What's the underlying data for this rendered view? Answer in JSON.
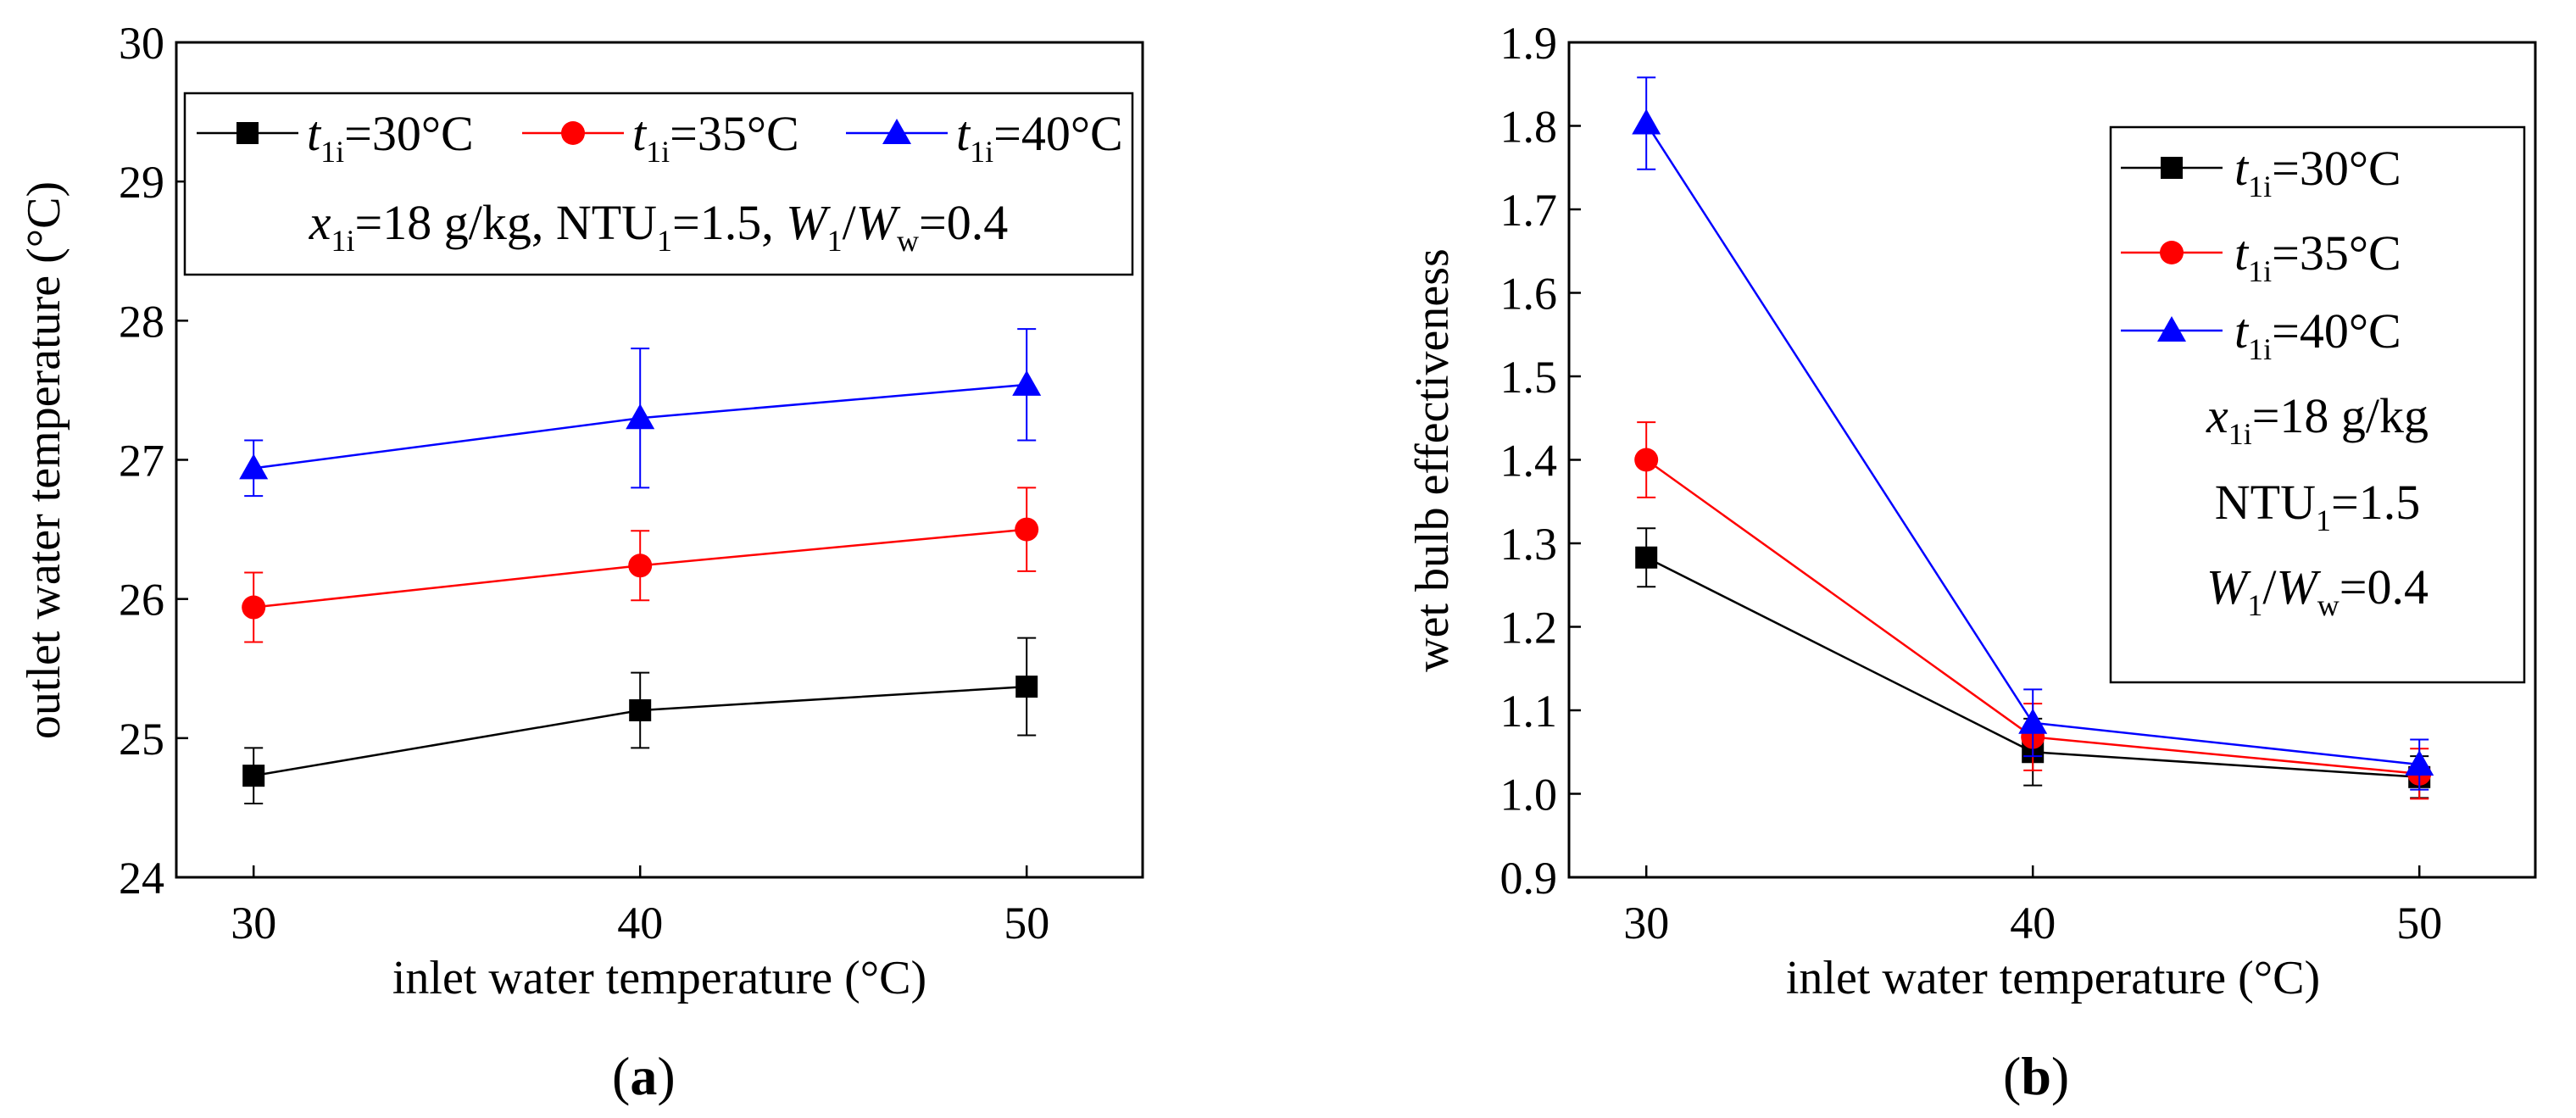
{
  "panel_labels": {
    "a": "a",
    "b": "b"
  },
  "chart_data": [
    {
      "id": "a",
      "type": "line",
      "panel_label": "a",
      "title": "",
      "xlabel": "inlet water temperature (°C)",
      "ylabel": "outlet water temperature (°C)",
      "x": [
        30,
        40,
        50
      ],
      "xlim": [
        28,
        53
      ],
      "ylim": [
        24,
        30
      ],
      "xticks": [
        30,
        40,
        50
      ],
      "yticks": [
        24,
        25,
        26,
        27,
        28,
        29,
        30
      ],
      "ytick_decimals": 0,
      "grid": false,
      "legend_position": "top",
      "series": [
        {
          "name": "t1i=30°C",
          "var": "t",
          "sub": "1i",
          "value": "=30°C",
          "color": "#000000",
          "marker": "square",
          "values": [
            24.73,
            25.2,
            25.37
          ],
          "errors": [
            0.2,
            0.27,
            0.35
          ]
        },
        {
          "name": "t1i=35°C",
          "var": "t",
          "sub": "1i",
          "value": "=35°C",
          "color": "#ff0000",
          "marker": "circle",
          "values": [
            25.94,
            26.24,
            26.5
          ],
          "errors": [
            0.25,
            0.25,
            0.3
          ]
        },
        {
          "name": "t1i=40°C",
          "var": "t",
          "sub": "1i",
          "value": "=40°C",
          "color": "#0000ff",
          "marker": "triangle",
          "values": [
            26.94,
            27.3,
            27.54
          ],
          "errors": [
            0.2,
            0.5,
            0.4
          ]
        }
      ],
      "annotation": {
        "x_var": "x",
        "x_sub": "1i",
        "x_rest": "=18 g/kg, NTU",
        "ntu_sub": "1",
        "ntu_rest": "=1.5, ",
        "w1_var": "W",
        "w1_sub": "1",
        "slash": "/",
        "ww_var": "W",
        "ww_sub": "w",
        "w_rest": "=0.4"
      }
    },
    {
      "id": "b",
      "type": "line",
      "panel_label": "b",
      "title": "",
      "xlabel": "inlet water temperature (°C)",
      "ylabel": "wet bulb effectiveness",
      "x": [
        30,
        40,
        50
      ],
      "xlim": [
        28,
        53
      ],
      "ylim": [
        0.9,
        1.9
      ],
      "xticks": [
        30,
        40,
        50
      ],
      "yticks": [
        0.9,
        1.0,
        1.1,
        1.2,
        1.3,
        1.4,
        1.5,
        1.6,
        1.7,
        1.8,
        1.9
      ],
      "ytick_decimals": 1,
      "grid": false,
      "legend_position": "right",
      "series": [
        {
          "name": "t1i=30°C",
          "var": "t",
          "sub": "1i",
          "value": "=30°C",
          "color": "#000000",
          "marker": "square",
          "values": [
            1.283,
            1.05,
            1.02
          ],
          "errors": [
            0.035,
            0.04,
            0.025
          ]
        },
        {
          "name": "t1i=35°C",
          "var": "t",
          "sub": "1i",
          "value": "=35°C",
          "color": "#ff0000",
          "marker": "circle",
          "values": [
            1.4,
            1.068,
            1.024
          ],
          "errors": [
            0.045,
            0.04,
            0.03
          ]
        },
        {
          "name": "t1i=40°C",
          "var": "t",
          "sub": "1i",
          "value": "=40°C",
          "color": "#0000ff",
          "marker": "triangle",
          "values": [
            1.803,
            1.085,
            1.035
          ],
          "errors": [
            0.055,
            0.04,
            0.03
          ]
        }
      ],
      "annotation": {
        "x_var": "x",
        "x_sub": "1i",
        "x_rest": "=18 g/kg",
        "ntu": "NTU",
        "ntu_sub": "1",
        "ntu_rest": "=1.5",
        "w1_var": "W",
        "w1_sub": "1",
        "slash": "/",
        "ww_var": "W",
        "ww_sub": "w",
        "w_rest": "=0.4"
      }
    }
  ]
}
